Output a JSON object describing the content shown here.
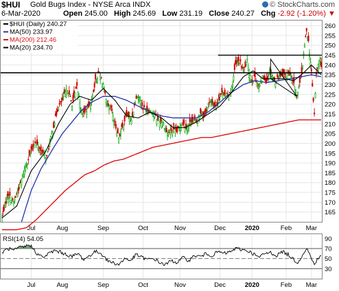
{
  "header": {
    "symbol": "$HUI",
    "name": "Gold Bugs Index - NYSE Arca  INDX",
    "date": "6-Mar-2020",
    "open_label": "Open",
    "open": "245.00",
    "high_label": "High",
    "high": "245.69",
    "low_label": "Low",
    "low": "231.19",
    "close_label": "Close",
    "close": "240.27",
    "chg_label": "Chg",
    "chg": "-2.92 (-1.20%)",
    "chg_arrow": "▼",
    "logo": "© StockCharts.com"
  },
  "colors": {
    "up": "#00a000",
    "down": "#d00000",
    "ma50": "#2233aa",
    "ma200": "#dd1111",
    "ma20": "#000000",
    "rsi_fill": "#5a8a5a"
  },
  "chart_data": [
    {
      "type": "candlestick",
      "legend": [
        {
          "label": "$HUI (Daily) 240.27",
          "color": "#000000"
        },
        {
          "label": "MA(50) 233.97",
          "color": "#2233aa"
        },
        {
          "label": "MA(200) 212.46",
          "color": "#dd1111"
        },
        {
          "label": "MA(20) 234.70",
          "color": "#000000"
        }
      ],
      "ylim": [
        160,
        263
      ],
      "yticks": [
        165,
        170,
        175,
        180,
        185,
        190,
        195,
        200,
        205,
        210,
        215,
        220,
        225,
        230,
        235,
        240,
        245,
        250,
        255,
        260
      ],
      "x_month_labels": [
        "Jul",
        "Aug",
        "Sep",
        "Oct",
        "Nov",
        "Dec",
        "2020",
        "Feb",
        "Mar"
      ],
      "x_month_index": [
        30,
        62,
        104,
        145,
        183,
        224,
        257,
        292,
        318
      ],
      "anchors": {
        "close": [
          [
            0,
            163
          ],
          [
            6,
            174
          ],
          [
            12,
            170
          ],
          [
            18,
            178
          ],
          [
            24,
            188
          ],
          [
            30,
            196
          ],
          [
            34,
            201
          ],
          [
            40,
            196
          ],
          [
            46,
            193
          ],
          [
            52,
            207
          ],
          [
            58,
            219
          ],
          [
            62,
            222
          ],
          [
            67,
            228
          ],
          [
            72,
            220
          ],
          [
            77,
            229
          ],
          [
            82,
            216
          ],
          [
            87,
            217
          ],
          [
            92,
            222
          ],
          [
            96,
            232
          ],
          [
            100,
            236
          ],
          [
            104,
            230
          ],
          [
            108,
            219
          ],
          [
            112,
            218
          ],
          [
            116,
            210
          ],
          [
            120,
            203
          ],
          [
            124,
            209
          ],
          [
            128,
            215
          ],
          [
            133,
            212
          ],
          [
            138,
            224
          ],
          [
            142,
            223
          ],
          [
            145,
            218
          ],
          [
            150,
            217
          ],
          [
            155,
            216
          ],
          [
            160,
            212
          ],
          [
            165,
            211
          ],
          [
            170,
            205
          ],
          [
            175,
            207
          ],
          [
            180,
            206
          ],
          [
            185,
            211
          ],
          [
            190,
            208
          ],
          [
            195,
            212
          ],
          [
            200,
            211
          ],
          [
            204,
            216
          ],
          [
            208,
            214
          ],
          [
            212,
            220
          ],
          [
            216,
            221
          ],
          [
            220,
            218
          ],
          [
            224,
            225
          ],
          [
            228,
            226
          ],
          [
            232,
            224
          ],
          [
            236,
            228
          ],
          [
            240,
            240
          ],
          [
            244,
            242
          ],
          [
            248,
            237
          ],
          [
            252,
            242
          ],
          [
            256,
            232
          ],
          [
            260,
            234
          ],
          [
            264,
            228
          ],
          [
            268,
            234
          ],
          [
            272,
            232
          ],
          [
            276,
            238
          ],
          [
            280,
            231
          ],
          [
            284,
            234
          ],
          [
            288,
            236
          ],
          [
            292,
            235
          ],
          [
            296,
            235
          ],
          [
            300,
            230
          ],
          [
            303,
            224
          ],
          [
            306,
            230
          ],
          [
            309,
            240
          ],
          [
            311,
            250
          ],
          [
            313,
            258
          ],
          [
            315,
            252
          ],
          [
            318,
            236
          ],
          [
            321,
            215
          ],
          [
            322,
            225
          ],
          [
            323,
            235
          ],
          [
            325,
            240
          ],
          [
            327,
            243
          ],
          [
            328,
            240
          ]
        ],
        "ma50": [
          [
            20,
            160
          ],
          [
            30,
            176
          ],
          [
            40,
            187
          ],
          [
            52,
            197
          ],
          [
            62,
            205
          ],
          [
            72,
            211
          ],
          [
            82,
            217
          ],
          [
            92,
            221
          ],
          [
            104,
            224
          ],
          [
            116,
            224
          ],
          [
            128,
            222
          ],
          [
            140,
            219
          ],
          [
            152,
            216
          ],
          [
            164,
            214
          ],
          [
            176,
            213
          ],
          [
            188,
            213
          ],
          [
            200,
            213
          ],
          [
            212,
            216
          ],
          [
            224,
            221
          ],
          [
            236,
            226
          ],
          [
            248,
            230
          ],
          [
            260,
            232
          ],
          [
            272,
            231
          ],
          [
            284,
            232
          ],
          [
            296,
            233
          ],
          [
            308,
            234
          ],
          [
            318,
            235
          ],
          [
            328,
            234
          ]
        ],
        "ma200": [
          [
            0,
            156
          ],
          [
            15,
            156
          ],
          [
            25,
            157
          ],
          [
            35,
            161
          ],
          [
            45,
            166
          ],
          [
            55,
            171
          ],
          [
            65,
            176
          ],
          [
            75,
            180
          ],
          [
            85,
            184
          ],
          [
            95,
            186
          ],
          [
            105,
            189
          ],
          [
            115,
            191
          ],
          [
            125,
            192
          ],
          [
            135,
            194
          ],
          [
            145,
            196
          ],
          [
            155,
            198
          ],
          [
            165,
            199
          ],
          [
            175,
            200
          ],
          [
            185,
            201
          ],
          [
            195,
            202
          ],
          [
            205,
            203
          ],
          [
            215,
            203
          ],
          [
            225,
            204
          ],
          [
            235,
            205
          ],
          [
            245,
            206
          ],
          [
            255,
            207
          ],
          [
            265,
            208
          ],
          [
            275,
            209
          ],
          [
            285,
            210
          ],
          [
            295,
            211
          ],
          [
            305,
            212
          ],
          [
            315,
            212
          ],
          [
            328,
            212
          ]
        ],
        "ma20": [
          [
            0,
            162
          ],
          [
            15,
            168
          ],
          [
            30,
            186
          ],
          [
            45,
            196
          ],
          [
            58,
            210
          ],
          [
            70,
            220
          ],
          [
            80,
            224
          ],
          [
            92,
            222
          ],
          [
            104,
            228
          ],
          [
            116,
            222
          ],
          [
            128,
            214
          ],
          [
            140,
            213
          ],
          [
            152,
            216
          ],
          [
            164,
            213
          ],
          [
            176,
            208
          ],
          [
            188,
            208
          ],
          [
            200,
            211
          ],
          [
            212,
            215
          ],
          [
            224,
            219
          ],
          [
            236,
            226
          ],
          [
            248,
            234
          ],
          [
            258,
            237
          ],
          [
            268,
            233
          ],
          [
            278,
            233
          ],
          [
            290,
            233
          ],
          [
            300,
            232
          ],
          [
            310,
            236
          ],
          [
            318,
            240
          ],
          [
            328,
            235
          ]
        ]
      },
      "annotations": {
        "resistance_level": 236,
        "upper_level": 245,
        "triangle_points": [
          [
            276,
            243
          ],
          [
            303,
            224
          ],
          [
            276,
            233
          ]
        ]
      }
    },
    {
      "type": "line",
      "legend": "RSI(14) 54.05",
      "ylim": [
        10,
        100
      ],
      "yticks": [
        30,
        50,
        70,
        90
      ],
      "reference_lines": [
        70,
        50,
        30
      ],
      "x_month_labels": [
        "Jul",
        "Aug",
        "Sep",
        "Oct",
        "Nov",
        "Dec",
        "2020",
        "Feb",
        "Mar"
      ],
      "x_month_index": [
        30,
        62,
        104,
        145,
        183,
        224,
        257,
        292,
        318
      ],
      "anchors": [
        [
          0,
          62
        ],
        [
          6,
          70
        ],
        [
          12,
          66
        ],
        [
          18,
          72
        ],
        [
          24,
          74
        ],
        [
          28,
          78
        ],
        [
          32,
          70
        ],
        [
          36,
          60
        ],
        [
          42,
          52
        ],
        [
          48,
          60
        ],
        [
          54,
          66
        ],
        [
          60,
          63
        ],
        [
          66,
          58
        ],
        [
          72,
          54
        ],
        [
          78,
          60
        ],
        [
          84,
          48
        ],
        [
          90,
          56
        ],
        [
          96,
          64
        ],
        [
          100,
          62
        ],
        [
          104,
          57
        ],
        [
          108,
          46
        ],
        [
          114,
          42
        ],
        [
          120,
          38
        ],
        [
          126,
          50
        ],
        [
          132,
          46
        ],
        [
          138,
          58
        ],
        [
          144,
          52
        ],
        [
          150,
          48
        ],
        [
          156,
          50
        ],
        [
          162,
          42
        ],
        [
          168,
          38
        ],
        [
          174,
          46
        ],
        [
          180,
          42
        ],
        [
          186,
          52
        ],
        [
          192,
          46
        ],
        [
          198,
          56
        ],
        [
          204,
          54
        ],
        [
          210,
          60
        ],
        [
          216,
          56
        ],
        [
          222,
          64
        ],
        [
          228,
          60
        ],
        [
          234,
          63
        ],
        [
          240,
          70
        ],
        [
          246,
          68
        ],
        [
          252,
          66
        ],
        [
          258,
          60
        ],
        [
          264,
          52
        ],
        [
          270,
          60
        ],
        [
          276,
          62
        ],
        [
          282,
          56
        ],
        [
          288,
          64
        ],
        [
          294,
          58
        ],
        [
          300,
          48
        ],
        [
          304,
          42
        ],
        [
          308,
          55
        ],
        [
          311,
          65
        ],
        [
          314,
          69
        ],
        [
          317,
          54
        ],
        [
          321,
          38
        ],
        [
          324,
          50
        ],
        [
          328,
          54
        ]
      ],
      "note": "fill area above 70"
    }
  ]
}
